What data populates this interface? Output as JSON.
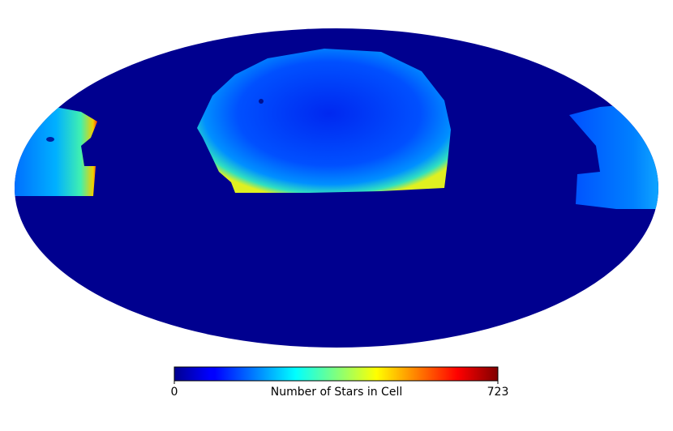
{
  "chart_data": {
    "type": "mollweide",
    "colormap": "jet",
    "colorbar": {
      "label": "Number of Stars in Cell",
      "lim": [
        0,
        723
      ],
      "ticks": [
        0,
        723
      ]
    }
  }
}
